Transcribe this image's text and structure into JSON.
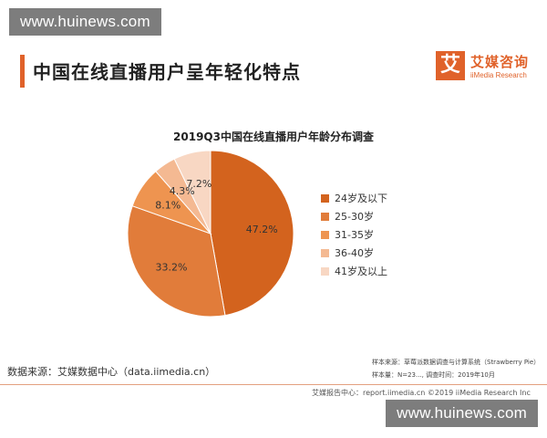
{
  "watermark": {
    "top": "www.huinews.com",
    "bottom": "www.huinews.com"
  },
  "page_title": "中国在线直播用户呈年轻化特点",
  "logo": {
    "mark": "艾",
    "name_cn": "艾媒咨询",
    "name_en": "iiMedia Research"
  },
  "chart_data": {
    "type": "pie",
    "title": "2019Q3中国在线直播用户年龄分布调查",
    "categories": [
      "24岁及以下",
      "25-30岁",
      "31-35岁",
      "36-40岁",
      "41岁及以上"
    ],
    "values": [
      47.2,
      33.2,
      8.1,
      4.3,
      7.2
    ],
    "value_labels": [
      "47.2%",
      "33.2%",
      "8.1%",
      "4.3%",
      "7.2%"
    ],
    "colors": [
      "#d3631e",
      "#e17c3a",
      "#ee9450",
      "#f4b992",
      "#f8d7c3"
    ],
    "legend_position": "right"
  },
  "source": "数据来源：艾媒数据中心（data.iimedia.cn）",
  "notes": {
    "line1": "样本来源：草莓派数据调查与计算系统（Strawberry Pie）",
    "line2": "样本量：N=23..., 调查时间：2019年10月"
  },
  "footer": "艾媒报告中心：report.iimedia.cn  ©2019  iiMedia Research Inc"
}
